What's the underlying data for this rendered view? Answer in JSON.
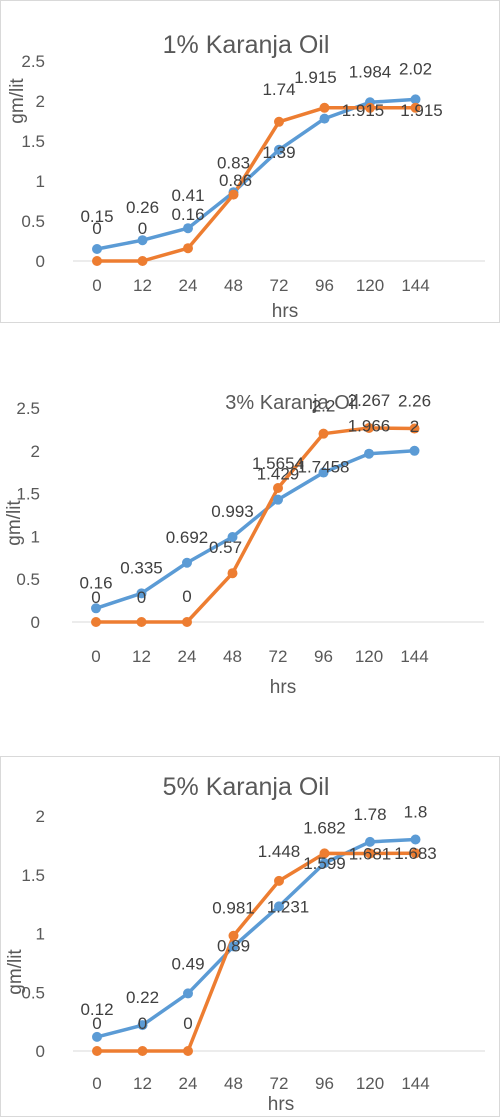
{
  "chart_data": [
    {
      "type": "line",
      "title": "1% Karanja Oil",
      "xlabel": "hrs",
      "ylabel": "gm/lit",
      "categories": [
        "0",
        "12",
        "24",
        "48",
        "72",
        "96",
        "120",
        "144"
      ],
      "yticks": [
        "0",
        "0.5",
        "1",
        "1.5",
        "2",
        "2.5"
      ],
      "ylim": [
        0,
        2.5
      ],
      "grid": false,
      "series": [
        {
          "color": "#5b9bd5",
          "values": [
            0.15,
            0.26,
            0.41,
            0.86,
            1.39,
            1.78,
            1.984,
            2.02
          ],
          "labels": [
            "0.15",
            "0.26",
            "0.41",
            "0.86",
            "1.39",
            "",
            "1.984",
            "2.02"
          ]
        },
        {
          "color": "#ed7d31",
          "values": [
            0,
            0,
            0.16,
            0.83,
            1.74,
            1.915,
            1.915,
            1.915
          ],
          "labels": [
            "0",
            "0",
            "0.16",
            "0.83",
            "1.74",
            "1.915",
            "1.915",
            "1.915"
          ]
        }
      ]
    },
    {
      "type": "line",
      "title": "3% Karanja Oil",
      "xlabel": "hrs",
      "ylabel": "gm/lit",
      "categories": [
        "0",
        "12",
        "24",
        "48",
        "72",
        "96",
        "120",
        "144"
      ],
      "yticks": [
        "0",
        "0.5",
        "1",
        "1.5",
        "2",
        "2.5"
      ],
      "ylim": [
        0,
        2.5
      ],
      "grid": false,
      "series": [
        {
          "color": "#5b9bd5",
          "values": [
            0.16,
            0.335,
            0.692,
            0.993,
            1.429,
            1.7458,
            1.966,
            2
          ],
          "labels": [
            "0.16",
            "0.335",
            "0.692",
            "0.993",
            "1.429",
            "1.7458",
            "1.966",
            "2"
          ]
        },
        {
          "color": "#ed7d31",
          "values": [
            0,
            0,
            0,
            0.57,
            1.5654,
            2.2,
            2.267,
            2.26
          ],
          "labels": [
            "0",
            "0",
            "0",
            "0.57",
            "1.5654",
            "2.2",
            "2.267",
            "2.26"
          ]
        }
      ]
    },
    {
      "type": "line",
      "title": "5% Karanja Oil",
      "xlabel": "hrs",
      "ylabel": "gm/lit",
      "categories": [
        "0",
        "12",
        "24",
        "48",
        "72",
        "96",
        "120",
        "144"
      ],
      "yticks": [
        "0",
        "0.5",
        "1",
        "1.5",
        "2"
      ],
      "ylim": [
        0,
        2
      ],
      "grid": false,
      "series": [
        {
          "color": "#5b9bd5",
          "values": [
            0.12,
            0.22,
            0.49,
            0.89,
            1.231,
            1.599,
            1.78,
            1.8
          ],
          "labels": [
            "0.12",
            "0.22",
            "0.49",
            "0.89",
            "1.231",
            "1.599",
            "1.78",
            "1.8"
          ]
        },
        {
          "color": "#ed7d31",
          "values": [
            0,
            0,
            0,
            0.981,
            1.448,
            1.682,
            1.681,
            1.683
          ],
          "labels": [
            "0",
            "0",
            "0",
            "0.981",
            "1.448",
            "1.682",
            "1.681",
            "1.683"
          ]
        }
      ]
    }
  ]
}
